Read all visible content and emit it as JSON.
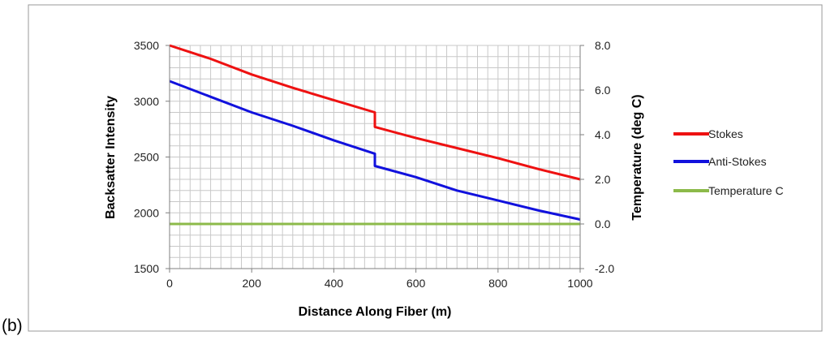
{
  "panel_label": "(b)",
  "chart_data": {
    "type": "line",
    "xlabel": "Distance Along Fiber (m)",
    "ylabel": "Backsatter Intensity",
    "y2label": "Temperature  (deg C)",
    "xlim": [
      0,
      1000
    ],
    "ylim": [
      1500,
      3500
    ],
    "y2lim": [
      -2.0,
      8.0
    ],
    "x_ticks": [
      "0",
      "200",
      "400",
      "600",
      "800",
      "1000"
    ],
    "y_ticks": [
      "1500",
      "2000",
      "2500",
      "3000",
      "3500"
    ],
    "y2_ticks": [
      "-2.0",
      "0.0",
      "2.0",
      "4.0",
      "6.0",
      "8.0"
    ],
    "grid": true,
    "legend_position": "right",
    "series": [
      {
        "name": "Stokes",
        "color": "#ee1111",
        "axis": "left",
        "x": [
          0,
          100,
          200,
          300,
          400,
          500,
          500,
          600,
          700,
          800,
          900,
          1000
        ],
        "y": [
          3500,
          3380,
          3240,
          3120,
          3010,
          2900,
          2770,
          2670,
          2580,
          2490,
          2390,
          2300
        ]
      },
      {
        "name": "Anti-Stokes",
        "color": "#1111dd",
        "axis": "left",
        "x": [
          0,
          100,
          200,
          300,
          400,
          500,
          500,
          600,
          700,
          800,
          900,
          1000
        ],
        "y": [
          3180,
          3040,
          2900,
          2780,
          2650,
          2530,
          2420,
          2320,
          2200,
          2110,
          2020,
          1940
        ]
      },
      {
        "name": "Temperature C",
        "color": "#8cba4a",
        "axis": "right",
        "x": [
          0,
          1000
        ],
        "y": [
          0.0,
          0.0
        ]
      }
    ]
  }
}
